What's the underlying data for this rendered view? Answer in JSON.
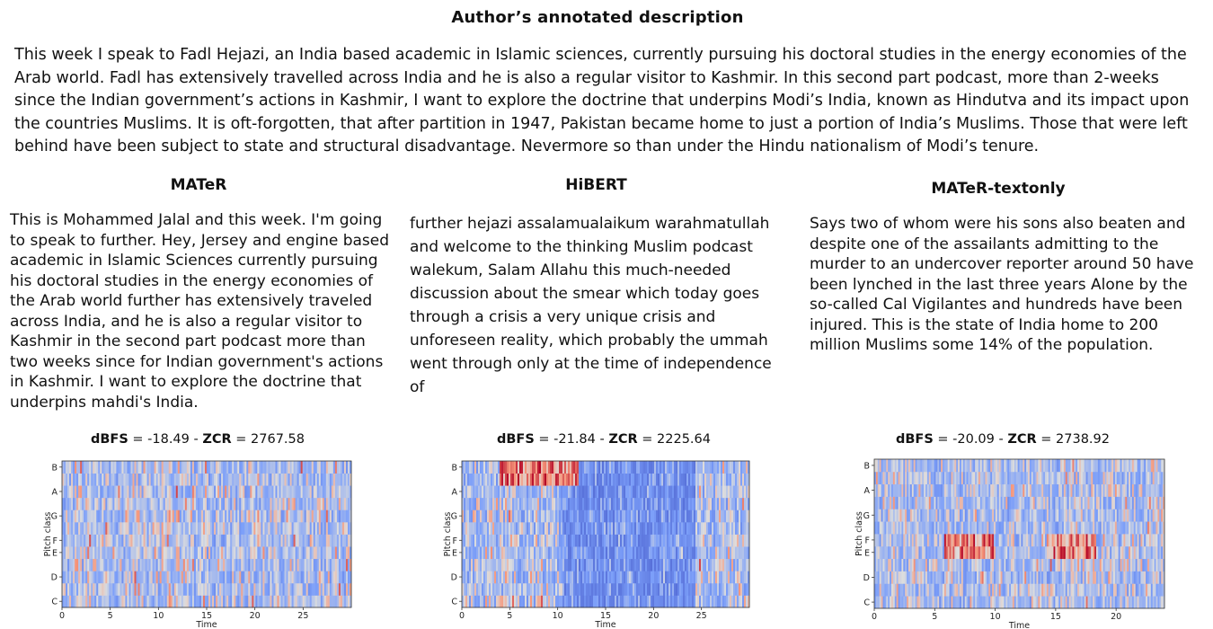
{
  "title": "Author’s annotated description",
  "description": "This week I speak to Fadl Hejazi, an India based academic in Islamic sciences, currently pursuing his doctoral studies in the energy economies of the Arab world. Fadl has extensively travelled across India and he is also a regular visitor to Kashmir. In this second part podcast, more than 2-weeks since the Indian government’s actions in Kashmir, I want to explore the doctrine that underpins Modi’s India, known as Hindutva and its impact upon the countries Muslims. It is oft-forgotten, that after partition in 1947, Pakistan became home to just a portion of India’s Muslims. Those that were left behind have been subject to state and structural disadvantage. Nevermore so than under the Hindu nationalism of Modi’s tenure.",
  "columns": [
    {
      "title": "MATeR",
      "text": "This is Mohammed Jalal and this week. I'm going to speak to further. Hey, Jersey and engine based academic in Islamic Sciences currently pursuing his doctoral studies in the energy economies of the Arab world further has extensively traveled across India, and he is also a regular visitor to Kashmir in the second part podcast more than two weeks since for Indian government's actions in Kashmir. I want to explore the doctrine that underpins mahdi's India.",
      "dbfs_label": "dBFS",
      "dbfs_value": "= -18.49 -",
      "zcr_label": "ZCR",
      "zcr_value": "= 2767.58"
    },
    {
      "title": "HiBERT",
      "text": "further hejazi assalamualaikum warahmatullah and welcome to the thinking Muslim podcast walekum, Salam Allahu this much-needed discussion about the smear which today goes through a crisis a very unique crisis and unforeseen reality, which probably the ummah went through only at the time of independence of",
      "dbfs_label": "dBFS",
      "dbfs_value": "= -21.84 -",
      "zcr_label": "ZCR",
      "zcr_value": "= 2225.64"
    },
    {
      "title": "MATeR-textonly",
      "text": "Says two of whom were his sons also beaten and despite one of the assailants admitting to the murder to an undercover reporter around 50 have been lynched in the last three years Alone by the so-called Cal Vigilantes and hundreds have been injured. This is the state of India home to 200 million Muslims some 14% of the population.",
      "dbfs_label": "dBFS",
      "dbfs_value": "= -20.09 -",
      "zcr_label": "ZCR",
      "zcr_value": "= 2738.92"
    }
  ],
  "chart_data": [
    {
      "type": "heatmap",
      "title": "",
      "xlabel": "Time",
      "ylabel": "Pitch class",
      "x_ticks": [
        "0",
        "5",
        "10",
        "15",
        "20",
        "25"
      ],
      "x_range": [
        0,
        30
      ],
      "y_ticks": [
        "C",
        "D",
        "E",
        "F",
        "G",
        "A",
        "B"
      ],
      "colormap": "coolwarm"
    },
    {
      "type": "heatmap",
      "title": "",
      "xlabel": "Time",
      "ylabel": "Pitch class",
      "x_ticks": [
        "0",
        "5",
        "10",
        "15",
        "20",
        "25"
      ],
      "x_range": [
        0,
        30
      ],
      "y_ticks": [
        "C",
        "D",
        "E",
        "F",
        "G",
        "A",
        "B"
      ],
      "colormap": "coolwarm"
    },
    {
      "type": "heatmap",
      "title": "",
      "xlabel": "Time",
      "ylabel": "Pitch class",
      "x_ticks": [
        "0",
        "5",
        "10",
        "15",
        "20"
      ],
      "x_range": [
        0,
        24
      ],
      "y_ticks": [
        "C",
        "D",
        "E",
        "F",
        "G",
        "A",
        "B"
      ],
      "colormap": "coolwarm"
    }
  ]
}
